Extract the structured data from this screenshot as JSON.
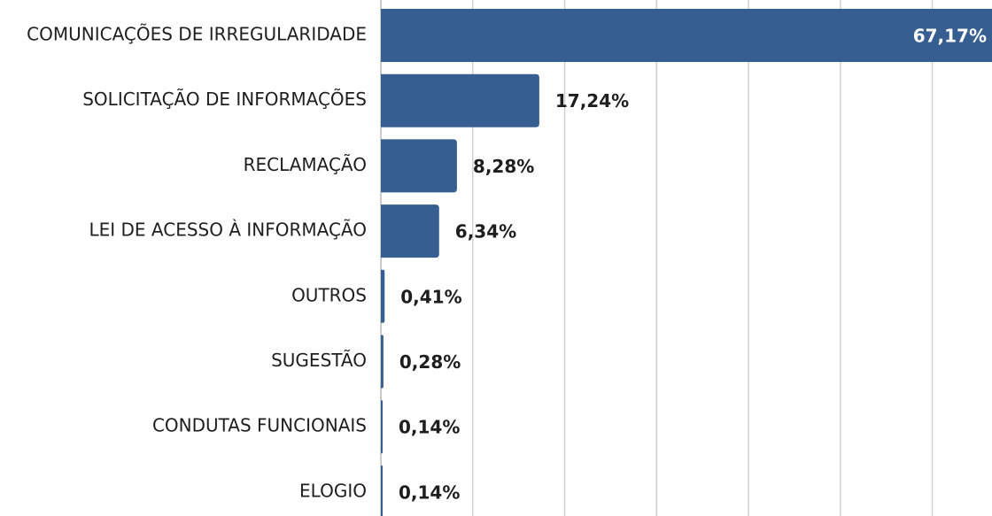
{
  "chart_data": {
    "type": "hbar",
    "categories": [
      "COMUNICAÇÕES DE IRREGULARIDADE",
      "SOLICITAÇÃO DE INFORMAÇÕES",
      "RECLAMAÇÃO",
      "LEI DE ACESSO À INFORMAÇÃO",
      "OUTROS",
      "SUGESTÃO",
      "CONDUTAS FUNCIONAIS",
      "ELOGIO"
    ],
    "values": [
      67.17,
      17.24,
      8.28,
      6.34,
      0.41,
      0.28,
      0.14,
      0.14
    ],
    "value_labels": [
      "67,17%",
      "17,24%",
      "8,28%",
      "6,34%",
      "0,41%",
      "0,28%",
      "0,14%",
      "0,14%"
    ],
    "color": "#365e91",
    "xlim": [
      0,
      66.5
    ],
    "xticks": [
      0,
      10,
      20,
      30,
      40,
      50,
      60
    ],
    "grid": true
  }
}
